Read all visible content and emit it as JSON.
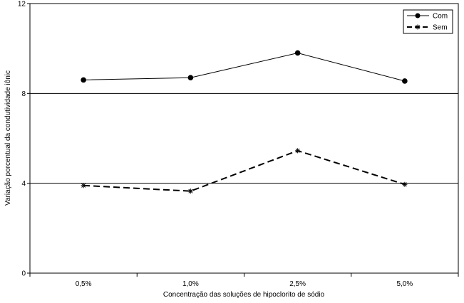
{
  "chart_data": {
    "type": "line",
    "title": "",
    "xlabel": "Concentração das soluções de hipoclorito de sódio",
    "ylabel": "Variação porcentual da condutividade iônic",
    "categories": [
      "0,5%",
      "1,0%",
      "2,5%",
      "5,0%"
    ],
    "ylim": [
      0,
      12
    ],
    "yticks": [
      0,
      4,
      8,
      12
    ],
    "grid": "horizontal lines at 4 and 8",
    "legend_position": "top-right",
    "series": [
      {
        "name": "Com",
        "values": [
          8.6,
          8.7,
          9.8,
          8.55
        ],
        "color": "#000000",
        "line_style": "solid",
        "marker": "circle"
      },
      {
        "name": "Sem",
        "values": [
          3.9,
          3.65,
          5.45,
          3.95
        ],
        "color": "#000000",
        "line_style": "dashed",
        "marker": "asterisk"
      }
    ]
  }
}
